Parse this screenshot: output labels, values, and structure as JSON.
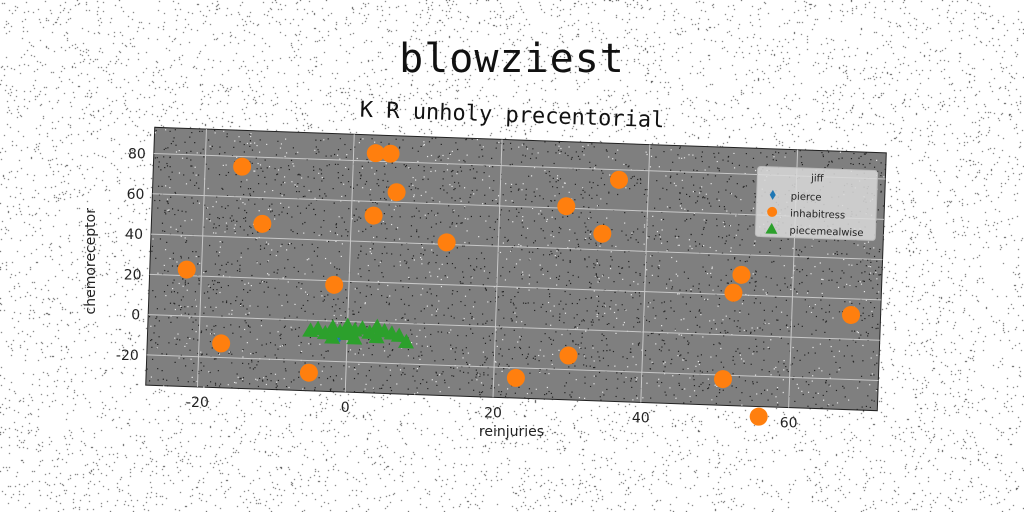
{
  "title": "blowziest",
  "chart_data": {
    "type": "scatter",
    "subtitle": "K R unholy precentorial",
    "xlabel": "reinjuries",
    "ylabel": "chemoreceptor",
    "xlim": [
      -27,
      72
    ],
    "ylim": [
      -35,
      93
    ],
    "xticks": [
      -20,
      0,
      20,
      40,
      60
    ],
    "yticks": [
      -20,
      0,
      20,
      40,
      60,
      80
    ],
    "grid": true,
    "background": "#7f7f7f",
    "legend": {
      "title": "jiff",
      "position": "top-right"
    },
    "series": [
      {
        "name": "pierce",
        "marker": "diamond",
        "color": "#1f77b4",
        "points": [
          [
            -1,
            -8
          ],
          [
            1,
            -6
          ],
          [
            3,
            -4
          ]
        ]
      },
      {
        "name": "inhabitress",
        "marker": "circle",
        "color": "#ff7f0e",
        "points": [
          [
            -22,
            23
          ],
          [
            -17,
            -13
          ],
          [
            -15,
            75
          ],
          [
            -12,
            47
          ],
          [
            -5,
            -26
          ],
          [
            -2,
            18
          ],
          [
            3,
            84
          ],
          [
            5,
            84
          ],
          [
            3,
            53
          ],
          [
            6,
            65
          ],
          [
            13,
            41
          ],
          [
            23,
            -25
          ],
          [
            29,
            61
          ],
          [
            30,
            -13
          ],
          [
            34,
            48
          ],
          [
            36,
            75
          ],
          [
            51,
            -22
          ],
          [
            52,
            21
          ],
          [
            53,
            30
          ],
          [
            56,
            -40
          ],
          [
            68,
            12
          ]
        ]
      },
      {
        "name": "piecemealwise",
        "marker": "triangle",
        "color": "#2ca02c",
        "points": [
          [
            -5,
            -5
          ],
          [
            -4,
            -4
          ],
          [
            -3,
            -6
          ],
          [
            -2,
            -3
          ],
          [
            -1,
            -5
          ],
          [
            0,
            -2
          ],
          [
            0,
            -6
          ],
          [
            1,
            -4
          ],
          [
            2,
            -3
          ],
          [
            3,
            -5
          ],
          [
            4,
            -2
          ],
          [
            5,
            -4
          ],
          [
            6,
            -5
          ],
          [
            7,
            -6
          ],
          [
            8,
            -9
          ],
          [
            -2,
            -8
          ],
          [
            1,
            -8
          ],
          [
            4,
            -7
          ]
        ]
      }
    ]
  }
}
